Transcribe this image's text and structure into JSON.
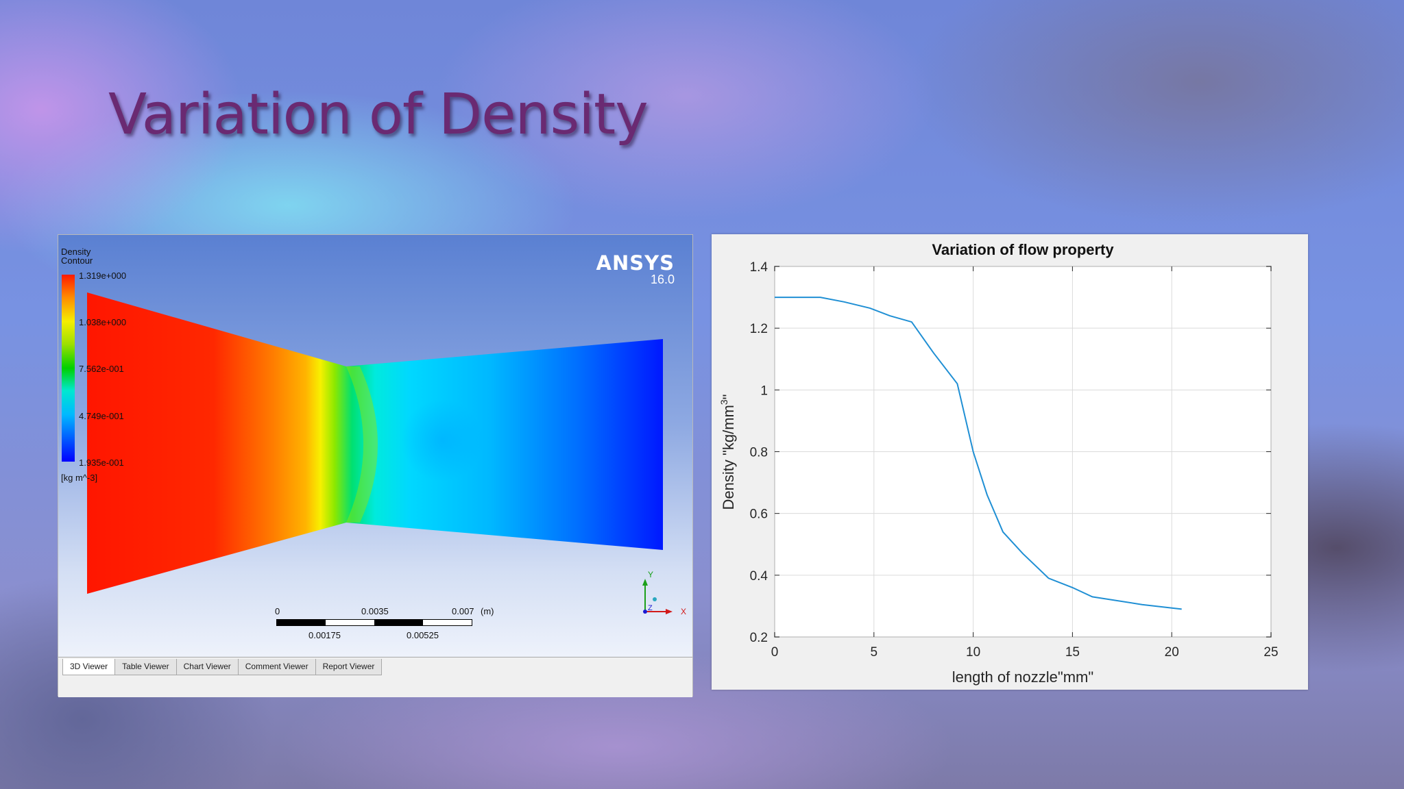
{
  "slide": {
    "title": "Variation of Density"
  },
  "ansys": {
    "legend": {
      "title_line1": "Density",
      "title_line2": "Contour",
      "labels": [
        "1.319e+000",
        "1.038e+000",
        "7.562e-001",
        "4.749e-001",
        "1.935e-001"
      ],
      "unit": "[kg m^-3]",
      "colors": [
        "#ff1a00",
        "#f5ee00",
        "#00d000",
        "#00b8ff",
        "#0000ff"
      ]
    },
    "logo": {
      "brand": "ANSYS",
      "version": "16.0"
    },
    "scale": {
      "top_labels": [
        "0",
        "0.0035",
        "0.007",
        "(m)"
      ],
      "bottom_labels": [
        "0.00175",
        "0.00525"
      ]
    },
    "triad": {
      "y": "Y",
      "x": "X",
      "z": "Z"
    },
    "tabs": [
      {
        "label": "3D Viewer",
        "active": true
      },
      {
        "label": "Table Viewer",
        "active": false
      },
      {
        "label": "Chart Viewer",
        "active": false
      },
      {
        "label": "Comment Viewer",
        "active": false
      },
      {
        "label": "Report Viewer",
        "active": false
      }
    ]
  },
  "chart_data": {
    "type": "line",
    "title": "Variation of flow property",
    "xlabel": "length of nozzle\"mm\"",
    "ylabel_main": "Density \"kg/mm",
    "ylabel_sup": "3",
    "ylabel_end": "\"",
    "xlim": [
      0,
      25
    ],
    "ylim": [
      0.2,
      1.4
    ],
    "xticks": [
      0,
      5,
      10,
      15,
      20,
      25
    ],
    "yticks": [
      0.2,
      0.4,
      0.6,
      0.8,
      1,
      1.2,
      1.4
    ],
    "grid": true,
    "line_color": "#1f8fd4",
    "series": [
      {
        "x": [
          0,
          2.3,
          3.5,
          4.8,
          5.8,
          6.9,
          8.0,
          9.2,
          10.0,
          10.7,
          11.5,
          12.5,
          13.8,
          15.0,
          16.0,
          17.0,
          18.5,
          20.5
        ],
        "values": [
          1.3,
          1.3,
          1.285,
          1.265,
          1.24,
          1.22,
          1.12,
          1.02,
          0.8,
          0.66,
          0.54,
          0.47,
          0.39,
          0.36,
          0.33,
          0.32,
          0.305,
          0.29
        ]
      }
    ]
  }
}
